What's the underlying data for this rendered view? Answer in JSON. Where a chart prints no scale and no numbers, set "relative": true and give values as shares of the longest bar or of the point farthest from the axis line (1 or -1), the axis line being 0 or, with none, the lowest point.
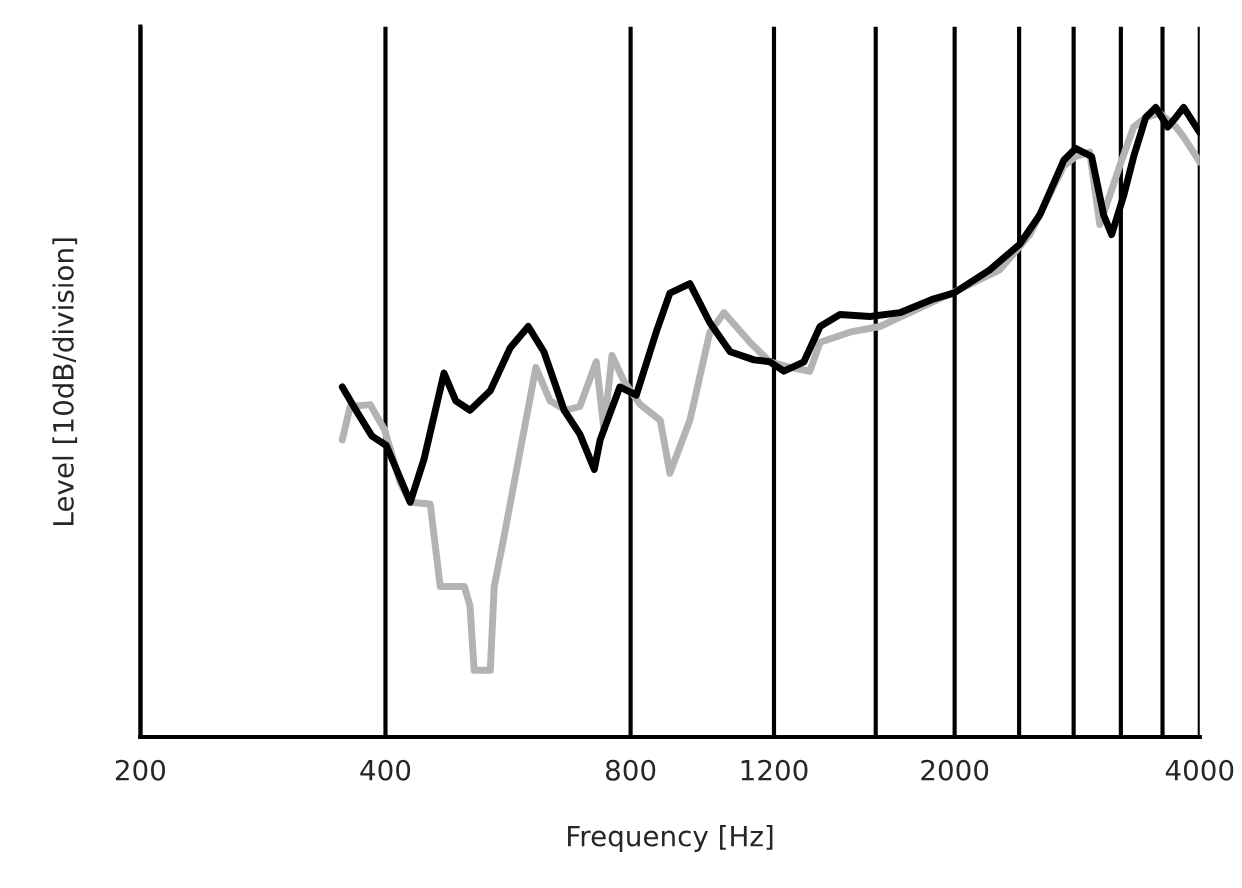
{
  "chart_data": {
    "type": "line",
    "xlabel": "Frequency [Hz]",
    "ylabel": "Level [10dB/division]",
    "relative": true,
    "log": "x",
    "grid": "x",
    "xlim": [
      200,
      4000
    ],
    "xticks": [
      200,
      400,
      800,
      1200,
      {
        "value": 1600,
        "label": null
      },
      2000,
      {
        "value": 2400,
        "label": null
      },
      {
        "value": 2800,
        "label": null
      },
      {
        "value": 3200,
        "label": null
      },
      {
        "value": 3600,
        "label": null
      },
      4000
    ],
    "series": [
      {
        "color": "#b3b3b3",
        "x": [
          354,
          362,
          383,
          399,
          417,
          429,
          454,
          467,
          480,
          500,
          508,
          514,
          538,
          544,
          559,
          592,
          612,
          637,
          666,
          693,
          726,
          742,
          759,
          785,
          822,
          870,
          894,
          946,
          1001,
          1042,
          1121,
          1186,
          1256,
          1328,
          1367,
          1487,
          1619,
          1762,
          2029,
          2272,
          2474,
          2723,
          2816,
          2930,
          3015,
          3190,
          3318,
          3433,
          3572,
          3738,
          3822,
          4000
        ],
        "values": [
          0.472,
          0.525,
          0.528,
          0.488,
          0.404,
          0.373,
          0.37,
          0.239,
          0.239,
          0.239,
          0.208,
          0.106,
          0.106,
          0.239,
          0.317,
          0.488,
          0.587,
          0.534,
          0.519,
          0.525,
          0.596,
          0.488,
          0.606,
          0.565,
          0.528,
          0.503,
          0.419,
          0.503,
          0.643,
          0.674,
          0.627,
          0.596,
          0.587,
          0.581,
          0.627,
          0.643,
          0.652,
          0.674,
          0.711,
          0.742,
          0.798,
          0.907,
          0.922,
          0.929,
          0.814,
          0.907,
          0.969,
          0.984,
          0.991,
          0.969,
          0.953,
          0.913
        ]
      },
      {
        "color": "#000000",
        "x": [
          354,
          368,
          385,
          401,
          429,
          446,
          472,
          488,
          508,
          538,
          569,
          599,
          626,
          663,
          693,
          722,
          734,
          776,
          813,
          860,
          894,
          946,
          1001,
          1060,
          1134,
          1186,
          1234,
          1306,
          1367,
          1446,
          1574,
          1713,
          1886,
          1995,
          2209,
          2405,
          2544,
          2723,
          2816,
          2946,
          3048,
          3118,
          3226,
          3318,
          3433,
          3532,
          3653,
          3738,
          3822,
          4000
        ],
        "values": [
          0.556,
          0.519,
          0.478,
          0.463,
          0.373,
          0.441,
          0.578,
          0.534,
          0.519,
          0.55,
          0.618,
          0.652,
          0.612,
          0.519,
          0.481,
          0.425,
          0.472,
          0.556,
          0.543,
          0.643,
          0.705,
          0.72,
          0.658,
          0.612,
          0.599,
          0.596,
          0.581,
          0.596,
          0.652,
          0.671,
          0.668,
          0.674,
          0.696,
          0.705,
          0.742,
          0.783,
          0.829,
          0.916,
          0.935,
          0.922,
          0.829,
          0.798,
          0.86,
          0.922,
          0.984,
          1.0,
          0.969,
          0.984,
          1.0,
          0.96
        ]
      }
    ]
  }
}
